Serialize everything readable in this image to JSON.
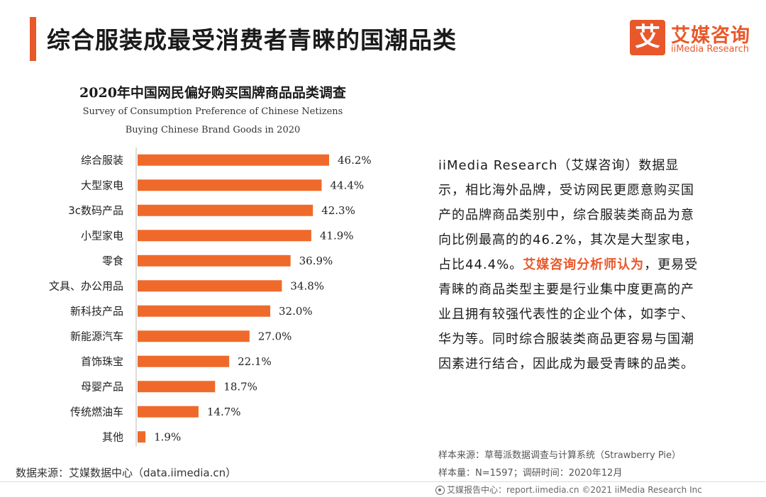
{
  "header": {
    "title": "综合服装成最受消费者青睐的国潮品类"
  },
  "logo": {
    "mark": "艾",
    "name_cn": "艾媒咨询",
    "name_en": "iiMedia Research"
  },
  "colors": {
    "accent": "#e8582a",
    "bar": "#ef6a2a"
  },
  "chart_data": {
    "type": "bar",
    "orientation": "horizontal",
    "title": "2020年中国网民偏好购买国牌商品品类调查",
    "subtitle_line1": "Survey of Consumption Preference of Chinese Netizens",
    "subtitle_line2": "Buying Chinese Brand Goods in 2020",
    "categories": [
      "综合服装",
      "大型家电",
      "3c数码产品",
      "小型家电",
      "零食",
      "文具、办公用品",
      "新科技产品",
      "新能源汽车",
      "首饰珠宝",
      "母婴产品",
      "传统燃油车",
      "其他"
    ],
    "values": [
      46.2,
      44.4,
      42.3,
      41.9,
      36.9,
      34.8,
      32.0,
      27.0,
      22.1,
      18.7,
      14.7,
      1.9
    ],
    "value_labels": [
      "46.2%",
      "44.4%",
      "42.3%",
      "41.9%",
      "36.9%",
      "34.8%",
      "32.0%",
      "27.0%",
      "22.1%",
      "18.7%",
      "14.7%",
      "1.9%"
    ],
    "unit": "%",
    "grid": false,
    "legend": "none"
  },
  "description": {
    "part1": "iiMedia Research（艾媒咨询）数据显示，相比海外品牌，受访网民更愿意购买国产的品牌商品类别中，综合服装类商品为意向比例最高的的46.2%，其次是大型家电，占比44.4%。",
    "highlight": "艾媒咨询分析师认为",
    "part2": "，更易受青睐的商品类型主要是行业集中度更高的产业且拥有较强代表性的企业个体，如李宁、华为等。同时综合服装类商品更容易与国潮因素进行结合，因此成为最受青睐的品类。"
  },
  "notes": {
    "sample_source": "样本来源：草莓派数据调查与计算系统（Strawberry Pie）",
    "sample_size": "样本量：N=1597；调研时间：2020年12月"
  },
  "source": "数据来源：艾媒数据中心（data.iimedia.cn）",
  "footer": "艾媒报告中心：report.iimedia.cn  ©2021  iiMedia Research  Inc"
}
